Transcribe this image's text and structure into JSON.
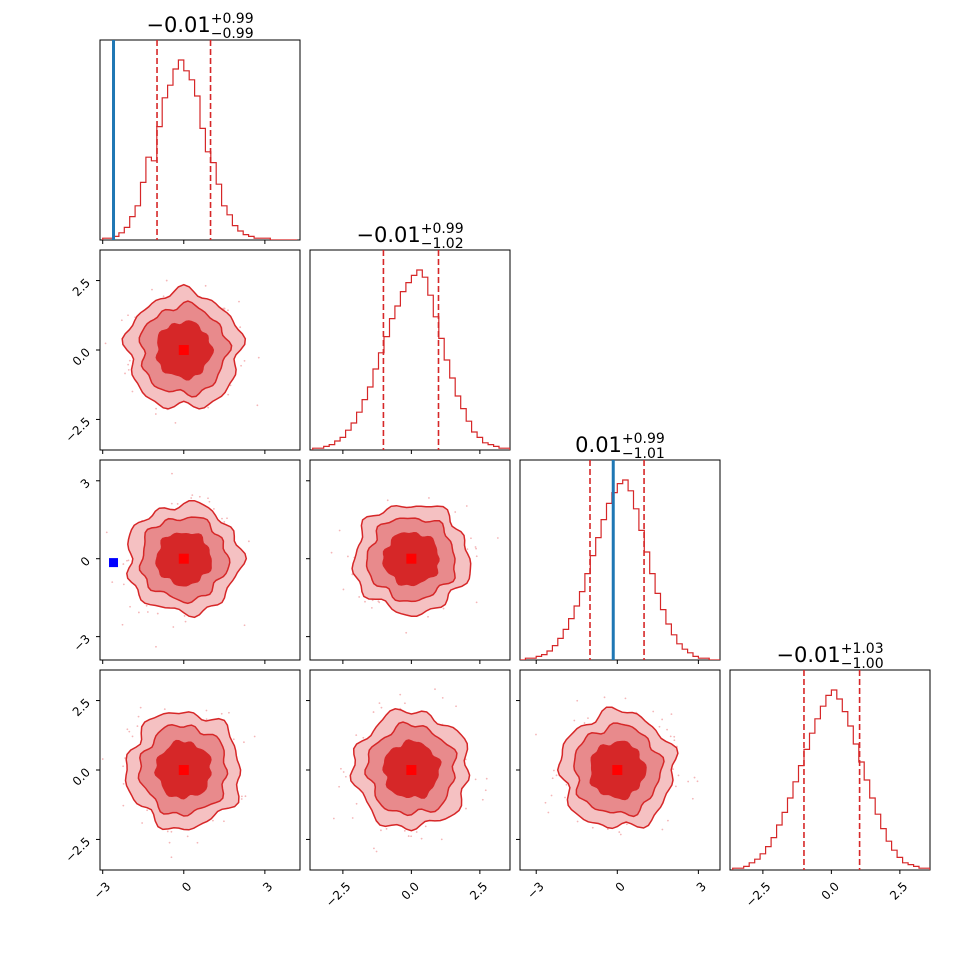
{
  "chart_data": {
    "type": "corner",
    "dimensions": 4,
    "colors": {
      "posterior": "#d62728",
      "truth": "#1f77b4",
      "marker_highlight": "#0000ff"
    },
    "diagonal": [
      {
        "index": 0,
        "title": {
          "median": "−0.01",
          "plus": "+0.99",
          "minus": "−0.99"
        },
        "median": -0.01,
        "q_low": -0.99,
        "q_high": 0.99,
        "truth": -2.6,
        "xlim": [
          -3.1,
          4.3
        ],
        "hist_centers": [
          -2.9,
          -2.7,
          -2.5,
          -2.3,
          -2.1,
          -1.9,
          -1.7,
          -1.5,
          -1.3,
          -1.1,
          -0.9,
          -0.7,
          -0.5,
          -0.3,
          -0.1,
          0.1,
          0.3,
          0.5,
          0.7,
          0.9,
          1.1,
          1.3,
          1.5,
          1.7,
          1.9,
          2.1,
          2.3,
          2.5,
          2.7,
          2.9,
          3.1,
          3.3,
          3.5,
          3.7,
          3.9,
          4.1
        ],
        "hist_counts": [
          0.01,
          0.01,
          0.02,
          0.04,
          0.07,
          0.13,
          0.19,
          0.32,
          0.46,
          0.44,
          0.63,
          0.79,
          0.86,
          0.95,
          1.0,
          0.94,
          0.89,
          0.8,
          0.62,
          0.49,
          0.43,
          0.31,
          0.19,
          0.14,
          0.08,
          0.05,
          0.03,
          0.02,
          0.01,
          0.01,
          0.01,
          0.0,
          0.0,
          0.0,
          0.0,
          0.0
        ]
      },
      {
        "index": 1,
        "title": {
          "median": "−0.01",
          "plus": "+0.99",
          "minus": "−1.02"
        },
        "median": -0.01,
        "q_low": -1.02,
        "q_high": 0.99,
        "xlim": [
          -3.7,
          3.6
        ],
        "tick_values": [
          -2.5,
          0.0,
          2.5
        ],
        "tick_labels": [
          "−2.5",
          "0.0",
          "2.5"
        ],
        "hist_centers": [
          -3.5,
          -3.3,
          -3.1,
          -2.9,
          -2.7,
          -2.5,
          -2.3,
          -2.1,
          -1.9,
          -1.7,
          -1.5,
          -1.3,
          -1.1,
          -0.9,
          -0.7,
          -0.5,
          -0.3,
          -0.1,
          0.1,
          0.3,
          0.5,
          0.7,
          0.9,
          1.1,
          1.3,
          1.5,
          1.7,
          1.9,
          2.1,
          2.3,
          2.5,
          2.7,
          2.9,
          3.1,
          3.3,
          3.5
        ],
        "hist_counts": [
          0.01,
          0.01,
          0.02,
          0.03,
          0.05,
          0.07,
          0.11,
          0.15,
          0.21,
          0.28,
          0.35,
          0.45,
          0.54,
          0.63,
          0.73,
          0.8,
          0.88,
          0.93,
          0.97,
          1.0,
          0.96,
          0.86,
          0.74,
          0.62,
          0.5,
          0.4,
          0.3,
          0.23,
          0.16,
          0.1,
          0.07,
          0.04,
          0.03,
          0.02,
          0.01,
          0.01
        ]
      },
      {
        "index": 2,
        "title": {
          "median": "0.01",
          "plus": "+0.99",
          "minus": "−1.01"
        },
        "median": 0.01,
        "q_low": -1.01,
        "q_high": 0.99,
        "truth": -0.15,
        "xlim": [
          -3.6,
          3.8
        ],
        "tick_values": [
          -3,
          0,
          3
        ],
        "tick_labels": [
          "−3",
          "0",
          "3"
        ],
        "hist_centers": [
          -3.5,
          -3.3,
          -3.1,
          -2.9,
          -2.7,
          -2.5,
          -2.3,
          -2.1,
          -1.9,
          -1.7,
          -1.5,
          -1.3,
          -1.1,
          -0.9,
          -0.7,
          -0.5,
          -0.3,
          -0.1,
          0.1,
          0.3,
          0.5,
          0.7,
          0.9,
          1.1,
          1.3,
          1.5,
          1.7,
          1.9,
          2.1,
          2.3,
          2.5,
          2.7,
          2.9,
          3.1,
          3.3,
          3.5,
          3.7
        ],
        "hist_counts": [
          0.0,
          0.01,
          0.01,
          0.02,
          0.03,
          0.05,
          0.08,
          0.12,
          0.17,
          0.23,
          0.3,
          0.38,
          0.48,
          0.58,
          0.68,
          0.78,
          0.87,
          0.93,
          0.98,
          1.0,
          0.94,
          0.84,
          0.72,
          0.6,
          0.48,
          0.37,
          0.28,
          0.2,
          0.14,
          0.09,
          0.06,
          0.04,
          0.02,
          0.01,
          0.01,
          0.0,
          0.0
        ]
      },
      {
        "index": 3,
        "title": {
          "median": "−0.01",
          "plus": "+1.03",
          "minus": "−1.00"
        },
        "median": -0.01,
        "q_low": -1.0,
        "q_high": 1.03,
        "xlim": [
          -3.7,
          3.6
        ],
        "tick_values": [
          -2.5,
          0.0,
          2.5
        ],
        "tick_labels": [
          "−2.5",
          "0.0",
          "2.5"
        ],
        "hist_centers": [
          -3.5,
          -3.3,
          -3.1,
          -2.9,
          -2.7,
          -2.5,
          -2.3,
          -2.1,
          -1.9,
          -1.7,
          -1.5,
          -1.3,
          -1.1,
          -0.9,
          -0.7,
          -0.5,
          -0.3,
          -0.1,
          0.1,
          0.3,
          0.5,
          0.7,
          0.9,
          1.1,
          1.3,
          1.5,
          1.7,
          1.9,
          2.1,
          2.3,
          2.5,
          2.7,
          2.9,
          3.1,
          3.3,
          3.5
        ],
        "hist_counts": [
          0.01,
          0.01,
          0.02,
          0.04,
          0.06,
          0.09,
          0.13,
          0.18,
          0.25,
          0.32,
          0.4,
          0.49,
          0.58,
          0.67,
          0.76,
          0.84,
          0.91,
          0.97,
          1.0,
          0.95,
          0.88,
          0.8,
          0.7,
          0.6,
          0.5,
          0.4,
          0.31,
          0.23,
          0.16,
          0.11,
          0.07,
          0.04,
          0.03,
          0.02,
          0.01,
          0.01
        ]
      }
    ],
    "y_axes": [
      {
        "row": 1,
        "ylim": [
          -3.6,
          3.6
        ],
        "tick_values": [
          -2.5,
          0.0,
          2.5
        ],
        "tick_labels": [
          "−2.5",
          "0.0",
          "2.5"
        ]
      },
      {
        "row": 2,
        "ylim": [
          -3.9,
          3.8
        ],
        "tick_values": [
          -3,
          0,
          3
        ],
        "tick_labels": [
          "−3",
          "0",
          "3"
        ]
      },
      {
        "row": 3,
        "ylim": [
          -3.6,
          3.6
        ],
        "tick_values": [
          -2.5,
          0.0,
          2.5
        ],
        "tick_labels": [
          "−2.5",
          "0.0",
          "2.5"
        ]
      }
    ],
    "x_axes": [
      {
        "col": 0,
        "tick_values": [
          -3,
          0,
          3
        ],
        "tick_labels": [
          "−3",
          "0",
          "3"
        ]
      },
      {
        "col": 1,
        "tick_values": [
          -2.5,
          0.0,
          2.5
        ],
        "tick_labels": [
          "−2.5",
          "0.0",
          "2.5"
        ]
      },
      {
        "col": 2,
        "tick_values": [
          -3,
          0,
          3
        ],
        "tick_labels": [
          "−3",
          "0",
          "3"
        ]
      },
      {
        "col": 3,
        "tick_values": [
          -2.5,
          0.0,
          2.5
        ],
        "tick_labels": [
          "−2.5",
          "0.0",
          "2.5"
        ]
      }
    ],
    "contour_levels_sigma": [
      1.0,
      1.6,
      2.1
    ],
    "pairs": [
      {
        "row": 1,
        "col": 0,
        "center": [
          0.0,
          0.0
        ],
        "marker": "red-square"
      },
      {
        "row": 2,
        "col": 0,
        "center": [
          0.0,
          0.0
        ],
        "marker": "red-square",
        "extra_marker": {
          "x": -2.6,
          "y": -0.15,
          "color": "blue"
        }
      },
      {
        "row": 2,
        "col": 1,
        "center": [
          0.0,
          0.0
        ],
        "marker": "red-square"
      },
      {
        "row": 3,
        "col": 0,
        "center": [
          0.0,
          0.0
        ],
        "marker": "red-square"
      },
      {
        "row": 3,
        "col": 1,
        "center": [
          0.0,
          0.0
        ],
        "marker": "red-square"
      },
      {
        "row": 3,
        "col": 2,
        "center": [
          0.0,
          0.0
        ],
        "marker": "red-square"
      }
    ]
  }
}
